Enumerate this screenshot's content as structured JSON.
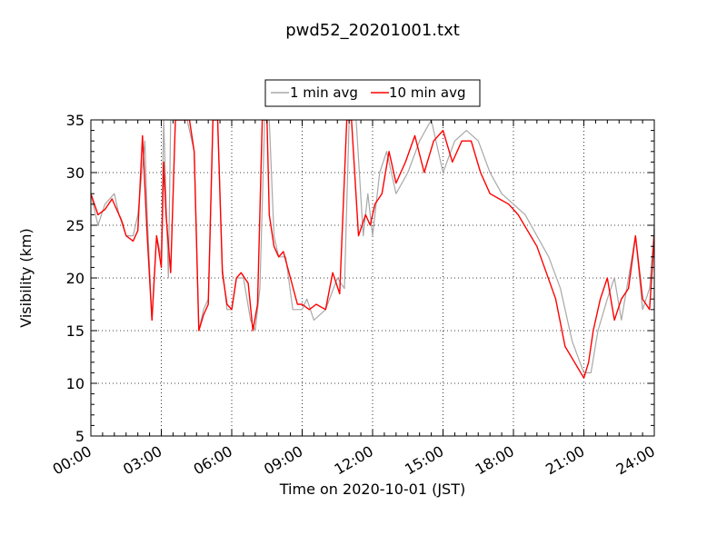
{
  "chart_data": {
    "type": "line",
    "title": "pwd52_20201001.txt",
    "xlabel": "Time on 2020-10-01 (JST)",
    "ylabel": "Visibility (km)",
    "xlim": [
      0,
      24
    ],
    "ylim": [
      5,
      35
    ],
    "x_ticks": [
      0,
      3,
      6,
      9,
      12,
      15,
      18,
      21,
      24
    ],
    "x_tick_labels": [
      "00:00",
      "03:00",
      "06:00",
      "09:00",
      "12:00",
      "15:00",
      "18:00",
      "21:00",
      "24:00"
    ],
    "y_ticks": [
      5,
      10,
      15,
      20,
      25,
      30,
      35
    ],
    "y_tick_labels": [
      "5",
      "10",
      "15",
      "20",
      "25",
      "30",
      "35"
    ],
    "grid": true,
    "legend_position": "top-center",
    "x_unit": "hours since 00:00",
    "series": [
      {
        "name": "1 min avg",
        "color": "#a8a8a8",
        "x": [
          0,
          0.3,
          0.6,
          1.0,
          1.2,
          1.5,
          1.8,
          2.0,
          2.3,
          2.4,
          2.6,
          2.8,
          3.0,
          3.1,
          3.3,
          3.4,
          3.6,
          3.9,
          4.1,
          4.4,
          4.6,
          4.8,
          5.0,
          5.2,
          5.4,
          5.6,
          5.8,
          6.0,
          6.2,
          6.5,
          6.8,
          7.0,
          7.2,
          7.4,
          7.6,
          7.8,
          8.0,
          8.3,
          8.6,
          9.0,
          9.2,
          9.5,
          10.0,
          10.5,
          10.8,
          11.0,
          11.3,
          11.6,
          11.8,
          12.0,
          12.3,
          12.6,
          13.0,
          13.5,
          14.0,
          14.5,
          15.0,
          15.5,
          16.0,
          16.5,
          17.0,
          17.5,
          18.0,
          18.5,
          19.0,
          19.5,
          20.0,
          20.5,
          21.0,
          21.3,
          21.6,
          22.0,
          22.3,
          22.6,
          22.9,
          23.2,
          23.5,
          23.8,
          24.0
        ],
        "y": [
          28,
          25,
          27,
          28,
          26,
          24,
          24,
          26,
          33,
          26,
          16,
          24,
          22,
          35,
          20,
          35,
          35,
          35,
          35,
          32,
          15,
          17,
          18,
          35,
          35,
          21,
          17,
          17,
          20,
          20,
          16,
          15,
          19,
          35,
          35,
          24,
          22,
          22,
          17,
          17,
          18,
          16,
          17,
          20,
          19,
          35,
          35,
          24,
          28,
          24,
          30,
          32,
          28,
          30,
          33,
          35,
          30,
          33,
          34,
          33,
          30,
          28,
          27,
          26,
          24,
          22,
          19,
          14,
          11,
          11,
          15,
          18,
          20,
          16,
          20,
          24,
          17,
          19,
          25
        ]
      },
      {
        "name": "10 min avg",
        "color": "#ff0000",
        "x": [
          0,
          0.3,
          0.6,
          0.9,
          1.1,
          1.3,
          1.5,
          1.8,
          2.0,
          2.2,
          2.4,
          2.6,
          2.8,
          3.0,
          3.1,
          3.2,
          3.4,
          3.6,
          3.8,
          4.0,
          4.2,
          4.4,
          4.6,
          4.8,
          5.0,
          5.2,
          5.4,
          5.6,
          5.8,
          6.0,
          6.2,
          6.4,
          6.7,
          6.9,
          7.1,
          7.3,
          7.5,
          7.6,
          7.8,
          8.0,
          8.2,
          8.5,
          8.8,
          9.0,
          9.3,
          9.6,
          10.0,
          10.3,
          10.6,
          10.9,
          11.1,
          11.4,
          11.7,
          11.9,
          12.1,
          12.4,
          12.7,
          13.0,
          13.4,
          13.8,
          14.2,
          14.6,
          15.0,
          15.4,
          15.8,
          16.2,
          16.6,
          17.0,
          17.4,
          17.8,
          18.2,
          18.6,
          19.0,
          19.4,
          19.8,
          20.2,
          20.6,
          21.0,
          21.2,
          21.4,
          21.7,
          22.0,
          22.3,
          22.6,
          22.9,
          23.2,
          23.5,
          23.8,
          24.0
        ],
        "y": [
          28,
          26,
          26.5,
          27.5,
          26.5,
          25.5,
          24,
          23.5,
          24.5,
          33.5,
          24,
          16,
          24,
          21,
          31,
          26,
          20.5,
          35,
          35,
          35,
          35,
          32,
          15,
          16.5,
          17.5,
          35,
          35,
          20.5,
          17.5,
          17,
          20,
          20.5,
          19.5,
          15,
          17.5,
          35,
          35,
          26,
          23,
          22,
          22.5,
          20,
          17.5,
          17.5,
          17,
          17.5,
          17,
          20.5,
          18.5,
          35,
          35,
          24,
          26,
          25,
          27,
          28,
          32,
          29,
          31,
          33.5,
          30,
          33,
          34,
          31,
          33,
          33,
          30,
          28,
          27.5,
          27,
          26,
          24.5,
          23,
          20.5,
          18,
          13.5,
          12,
          10.5,
          12,
          15,
          18,
          20,
          16,
          18,
          19,
          24,
          18,
          17,
          24
        ]
      }
    ]
  }
}
